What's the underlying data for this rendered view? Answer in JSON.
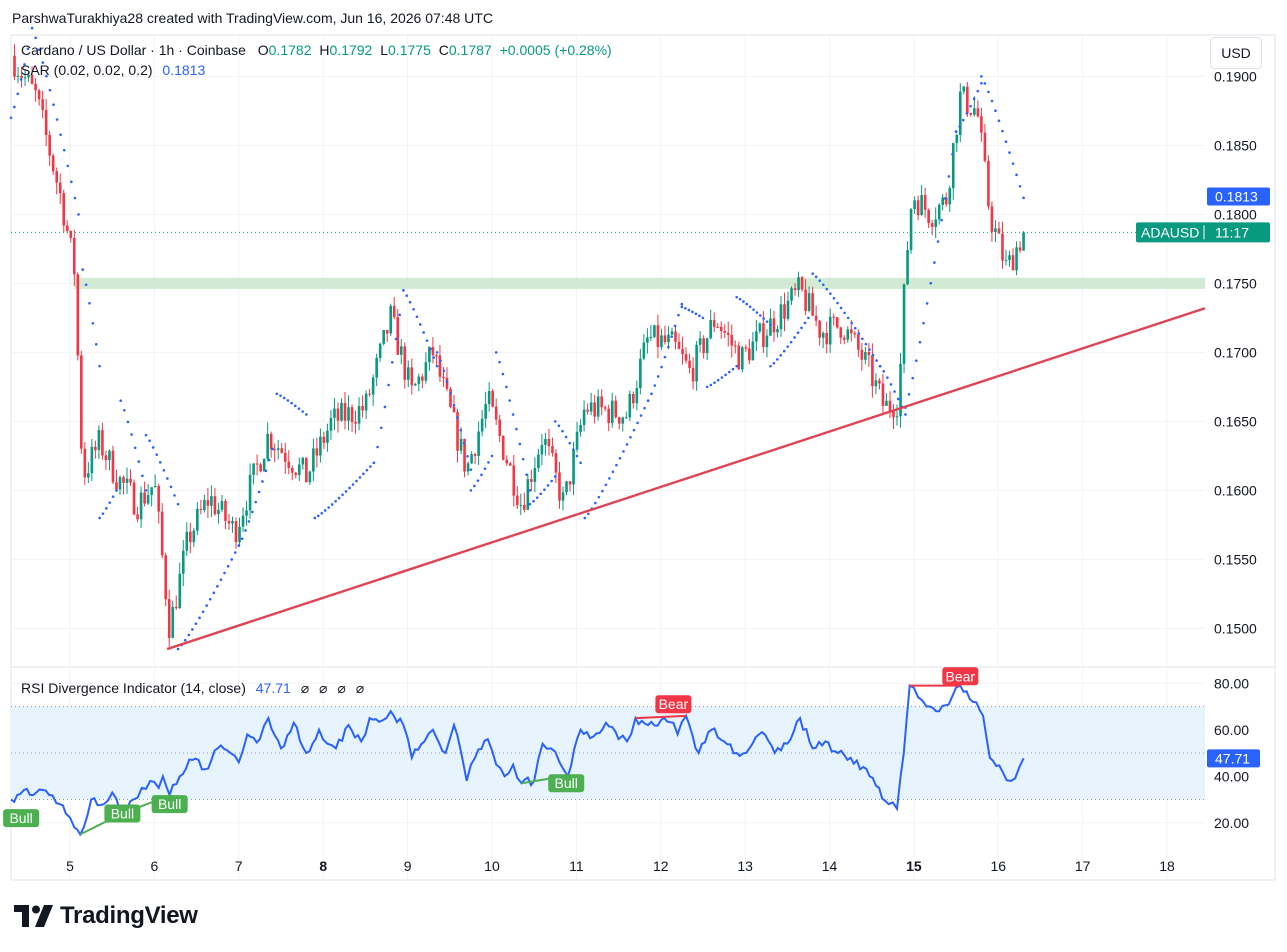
{
  "header": {
    "credit": "ParshwaTurakhiya28 created with TradingView.com, Jun 16, 2026 07:48 UTC",
    "currency_button": "USD"
  },
  "legend": {
    "symbol": "Cardano / US Dollar · 1h · Coinbase",
    "open_label": "O",
    "open": "0.1782",
    "high_label": "H",
    "high": "0.1792",
    "low_label": "L",
    "low": "0.1775",
    "close_label": "C",
    "close": "0.1787",
    "change": "+0.0005 (+0.28%)",
    "sar_label": "SAR (0.02, 0.02, 0.2)",
    "sar_value": "0.1813",
    "rsi_label": "RSI Divergence Indicator (14, close)",
    "rsi_value": "47.71",
    "rsi_flags": [
      "⌀",
      "⌀",
      "⌀",
      "⌀"
    ]
  },
  "badges": {
    "sar_price": "0.1813",
    "ticker": "ADAUSD",
    "countdown": "11:17",
    "rsi_value": "47.71"
  },
  "colors": {
    "up": "#089981",
    "down": "#f23645",
    "sar": "#2962ff",
    "rsi_line": "#2962ff",
    "trendline": "#e04352",
    "zone": "#c8e6c9",
    "bull_label": "#4caf50",
    "bear_label": "#f23645",
    "rsi_band": "#e8f4fd"
  },
  "brand": {
    "logo_text": "TradingView",
    "logo_icon": "tradingview-logo-icon"
  },
  "chart_data": [
    {
      "type": "candlestick",
      "title": "Cardano / US Dollar · 1h · Coinbase",
      "x_ticks": [
        {
          "label": "5",
          "day": 5,
          "bold": false
        },
        {
          "label": "6",
          "day": 6,
          "bold": false
        },
        {
          "label": "7",
          "day": 7,
          "bold": false
        },
        {
          "label": "8",
          "day": 8,
          "bold": true
        },
        {
          "label": "9",
          "day": 9,
          "bold": false
        },
        {
          "label": "10",
          "day": 10,
          "bold": false
        },
        {
          "label": "11",
          "day": 11,
          "bold": false
        },
        {
          "label": "12",
          "day": 12,
          "bold": false
        },
        {
          "label": "13",
          "day": 13,
          "bold": false
        },
        {
          "label": "14",
          "day": 14,
          "bold": false
        },
        {
          "label": "15",
          "day": 15,
          "bold": true
        },
        {
          "label": "16",
          "day": 16,
          "bold": false
        },
        {
          "label": "17",
          "day": 17,
          "bold": false
        },
        {
          "label": "18",
          "day": 18,
          "bold": false
        }
      ],
      "x_range": [
        4.3,
        18.45
      ],
      "y_ticks": [
        "0.1500",
        "0.1550",
        "0.1600",
        "0.1650",
        "0.1700",
        "0.1750",
        "0.1800",
        "0.1850",
        "0.1900"
      ],
      "y_range": [
        0.1472,
        0.193
      ],
      "last_price": 0.1787,
      "sar_last": 0.1813,
      "support_zone": [
        0.1746,
        0.1754
      ],
      "trendline": [
        {
          "day": 6.15,
          "price": 0.1485
        },
        {
          "day": 18.45,
          "price": 0.1732
        }
      ],
      "anchors": [
        {
          "day": 4.3,
          "price": 0.1915
        },
        {
          "day": 4.6,
          "price": 0.1885
        },
        {
          "day": 4.9,
          "price": 0.181
        },
        {
          "day": 5.05,
          "price": 0.176
        },
        {
          "day": 5.15,
          "price": 0.161
        },
        {
          "day": 5.35,
          "price": 0.1635
        },
        {
          "day": 5.55,
          "price": 0.161
        },
        {
          "day": 5.8,
          "price": 0.159
        },
        {
          "day": 6.0,
          "price": 0.1605
        },
        {
          "day": 6.18,
          "price": 0.15
        },
        {
          "day": 6.4,
          "price": 0.1565
        },
        {
          "day": 6.65,
          "price": 0.1595
        },
        {
          "day": 6.95,
          "price": 0.157
        },
        {
          "day": 7.35,
          "price": 0.164
        },
        {
          "day": 7.8,
          "price": 0.161
        },
        {
          "day": 8.1,
          "price": 0.165
        },
        {
          "day": 8.5,
          "price": 0.166
        },
        {
          "day": 8.8,
          "price": 0.1725
        },
        {
          "day": 9.05,
          "price": 0.167
        },
        {
          "day": 9.3,
          "price": 0.17
        },
        {
          "day": 9.7,
          "price": 0.1615
        },
        {
          "day": 9.95,
          "price": 0.1665
        },
        {
          "day": 10.35,
          "price": 0.159
        },
        {
          "day": 10.6,
          "price": 0.164
        },
        {
          "day": 10.85,
          "price": 0.159
        },
        {
          "day": 11.1,
          "price": 0.166
        },
        {
          "day": 11.6,
          "price": 0.1655
        },
        {
          "day": 11.85,
          "price": 0.171
        },
        {
          "day": 12.15,
          "price": 0.1705
        },
        {
          "day": 12.35,
          "price": 0.1685
        },
        {
          "day": 12.65,
          "price": 0.1725
        },
        {
          "day": 12.95,
          "price": 0.1695
        },
        {
          "day": 13.3,
          "price": 0.172
        },
        {
          "day": 13.65,
          "price": 0.1745
        },
        {
          "day": 13.9,
          "price": 0.1715
        },
        {
          "day": 14.15,
          "price": 0.172
        },
        {
          "day": 14.45,
          "price": 0.169
        },
        {
          "day": 14.65,
          "price": 0.166
        },
        {
          "day": 14.82,
          "price": 0.1665
        },
        {
          "day": 14.9,
          "price": 0.176
        },
        {
          "day": 14.98,
          "price": 0.1815
        },
        {
          "day": 15.2,
          "price": 0.18
        },
        {
          "day": 15.38,
          "price": 0.181
        },
        {
          "day": 15.55,
          "price": 0.1885
        },
        {
          "day": 15.75,
          "price": 0.1875
        },
        {
          "day": 15.9,
          "price": 0.18
        },
        {
          "day": 16.1,
          "price": 0.176
        },
        {
          "day": 16.3,
          "price": 0.1787
        }
      ],
      "sar_segments": [
        {
          "from": 4.3,
          "to": 4.5,
          "start": 0.187,
          "end": 0.192
        },
        {
          "from": 4.55,
          "to": 5.1,
          "start": 0.1935,
          "end": 0.18
        },
        {
          "from": 5.15,
          "to": 5.35,
          "start": 0.176,
          "end": 0.169
        },
        {
          "from": 5.35,
          "to": 5.55,
          "start": 0.158,
          "end": 0.16
        },
        {
          "from": 5.6,
          "to": 5.9,
          "start": 0.1665,
          "end": 0.16
        },
        {
          "from": 5.9,
          "to": 6.28,
          "start": 0.164,
          "end": 0.159
        },
        {
          "from": 6.28,
          "to": 7.0,
          "start": 0.1485,
          "end": 0.156
        },
        {
          "from": 7.0,
          "to": 7.4,
          "start": 0.156,
          "end": 0.163
        },
        {
          "from": 7.45,
          "to": 7.8,
          "start": 0.167,
          "end": 0.1655
        },
        {
          "from": 7.9,
          "to": 8.6,
          "start": 0.158,
          "end": 0.162
        },
        {
          "from": 8.6,
          "to": 8.95,
          "start": 0.162,
          "end": 0.1745
        },
        {
          "from": 8.95,
          "to": 9.35,
          "start": 0.1745,
          "end": 0.169
        },
        {
          "from": 9.35,
          "to": 9.75,
          "start": 0.17,
          "end": 0.1615
        },
        {
          "from": 9.75,
          "to": 10.0,
          "start": 0.16,
          "end": 0.1625
        },
        {
          "from": 10.05,
          "to": 10.45,
          "start": 0.17,
          "end": 0.16
        },
        {
          "from": 10.45,
          "to": 10.75,
          "start": 0.159,
          "end": 0.161
        },
        {
          "from": 10.75,
          "to": 11.05,
          "start": 0.165,
          "end": 0.162
        },
        {
          "from": 11.1,
          "to": 11.85,
          "start": 0.158,
          "end": 0.1665
        },
        {
          "from": 11.85,
          "to": 12.25,
          "start": 0.1665,
          "end": 0.1735
        },
        {
          "from": 12.25,
          "to": 12.5,
          "start": 0.1733,
          "end": 0.1725
        },
        {
          "from": 12.55,
          "to": 12.9,
          "start": 0.1675,
          "end": 0.169
        },
        {
          "from": 12.9,
          "to": 13.3,
          "start": 0.174,
          "end": 0.172
        },
        {
          "from": 13.3,
          "to": 13.75,
          "start": 0.169,
          "end": 0.1725
        },
        {
          "from": 13.8,
          "to": 14.6,
          "start": 0.1757,
          "end": 0.169
        },
        {
          "from": 14.6,
          "to": 14.9,
          "start": 0.169,
          "end": 0.1655
        },
        {
          "from": 14.9,
          "to": 15.5,
          "start": 0.166,
          "end": 0.186
        },
        {
          "from": 15.5,
          "to": 15.8,
          "start": 0.186,
          "end": 0.1895
        },
        {
          "from": 15.8,
          "to": 16.3,
          "start": 0.19,
          "end": 0.1812
        }
      ]
    },
    {
      "type": "line",
      "title": "RSI Divergence Indicator (14, close)",
      "y_ticks": [
        "20.00",
        "40.00",
        "60.00",
        "80.00"
      ],
      "y_range": [
        10,
        87
      ],
      "levels": [
        30,
        50,
        70
      ],
      "band": [
        30,
        70
      ],
      "last_value": 47.71,
      "rsi": [
        {
          "day": 4.3,
          "value": 30
        },
        {
          "day": 4.45,
          "value": 34
        },
        {
          "day": 4.6,
          "value": 33
        },
        {
          "day": 4.75,
          "value": 32
        },
        {
          "day": 4.88,
          "value": 28
        },
        {
          "day": 4.95,
          "value": 24
        },
        {
          "day": 5.05,
          "value": 18
        },
        {
          "day": 5.12,
          "value": 15
        },
        {
          "day": 5.25,
          "value": 30
        },
        {
          "day": 5.4,
          "value": 28
        },
        {
          "day": 5.5,
          "value": 33
        },
        {
          "day": 5.6,
          "value": 24
        },
        {
          "day": 5.75,
          "value": 30
        },
        {
          "day": 5.85,
          "value": 35
        },
        {
          "day": 5.95,
          "value": 38
        },
        {
          "day": 6.05,
          "value": 35
        },
        {
          "day": 6.1,
          "value": 40
        },
        {
          "day": 6.18,
          "value": 32
        },
        {
          "day": 6.3,
          "value": 40
        },
        {
          "day": 6.45,
          "value": 47
        },
        {
          "day": 6.6,
          "value": 43
        },
        {
          "day": 6.75,
          "value": 52
        },
        {
          "day": 6.9,
          "value": 50
        },
        {
          "day": 7.0,
          "value": 46
        },
        {
          "day": 7.1,
          "value": 58
        },
        {
          "day": 7.25,
          "value": 56
        },
        {
          "day": 7.35,
          "value": 65
        },
        {
          "day": 7.5,
          "value": 52
        },
        {
          "day": 7.65,
          "value": 63
        },
        {
          "day": 7.8,
          "value": 50
        },
        {
          "day": 7.95,
          "value": 60
        },
        {
          "day": 8.05,
          "value": 54
        },
        {
          "day": 8.15,
          "value": 52
        },
        {
          "day": 8.3,
          "value": 62
        },
        {
          "day": 8.45,
          "value": 55
        },
        {
          "day": 8.55,
          "value": 65
        },
        {
          "day": 8.7,
          "value": 64
        },
        {
          "day": 8.8,
          "value": 68
        },
        {
          "day": 8.95,
          "value": 62
        },
        {
          "day": 9.05,
          "value": 48
        },
        {
          "day": 9.2,
          "value": 55
        },
        {
          "day": 9.3,
          "value": 60
        },
        {
          "day": 9.45,
          "value": 50
        },
        {
          "day": 9.55,
          "value": 62
        },
        {
          "day": 9.7,
          "value": 38
        },
        {
          "day": 9.8,
          "value": 48
        },
        {
          "day": 9.95,
          "value": 56
        },
        {
          "day": 10.05,
          "value": 45
        },
        {
          "day": 10.15,
          "value": 40
        },
        {
          "day": 10.25,
          "value": 45
        },
        {
          "day": 10.35,
          "value": 37
        },
        {
          "day": 10.5,
          "value": 38
        },
        {
          "day": 10.6,
          "value": 54
        },
        {
          "day": 10.7,
          "value": 52
        },
        {
          "day": 10.8,
          "value": 46
        },
        {
          "day": 10.9,
          "value": 40
        },
        {
          "day": 11.05,
          "value": 60
        },
        {
          "day": 11.2,
          "value": 57
        },
        {
          "day": 11.35,
          "value": 63
        },
        {
          "day": 11.5,
          "value": 56
        },
        {
          "day": 11.6,
          "value": 55
        },
        {
          "day": 11.7,
          "value": 65
        },
        {
          "day": 11.85,
          "value": 62
        },
        {
          "day": 12.0,
          "value": 64
        },
        {
          "day": 12.15,
          "value": 63
        },
        {
          "day": 12.2,
          "value": 58
        },
        {
          "day": 12.3,
          "value": 66
        },
        {
          "day": 12.45,
          "value": 50
        },
        {
          "day": 12.6,
          "value": 60
        },
        {
          "day": 12.75,
          "value": 55
        },
        {
          "day": 12.9,
          "value": 50
        },
        {
          "day": 13.05,
          "value": 52
        },
        {
          "day": 13.2,
          "value": 59
        },
        {
          "day": 13.35,
          "value": 50
        },
        {
          "day": 13.5,
          "value": 54
        },
        {
          "day": 13.65,
          "value": 65
        },
        {
          "day": 13.8,
          "value": 52
        },
        {
          "day": 13.95,
          "value": 55
        },
        {
          "day": 14.1,
          "value": 50
        },
        {
          "day": 14.25,
          "value": 48
        },
        {
          "day": 14.4,
          "value": 44
        },
        {
          "day": 14.55,
          "value": 36
        },
        {
          "day": 14.7,
          "value": 28
        },
        {
          "day": 14.8,
          "value": 26
        },
        {
          "day": 14.88,
          "value": 50
        },
        {
          "day": 14.95,
          "value": 79
        },
        {
          "day": 15.05,
          "value": 74
        },
        {
          "day": 15.15,
          "value": 70
        },
        {
          "day": 15.3,
          "value": 68
        },
        {
          "day": 15.45,
          "value": 74
        },
        {
          "day": 15.55,
          "value": 79
        },
        {
          "day": 15.7,
          "value": 72
        },
        {
          "day": 15.82,
          "value": 66
        },
        {
          "day": 15.9,
          "value": 48
        },
        {
          "day": 16.05,
          "value": 42
        },
        {
          "day": 16.15,
          "value": 38
        },
        {
          "day": 16.25,
          "value": 44
        },
        {
          "day": 16.3,
          "value": 47.71
        }
      ],
      "divergences": [
        {
          "kind": "bull",
          "from": {
            "day": 5.12,
            "value": 15
          },
          "to": {
            "day": 5.62,
            "value": 24
          }
        },
        {
          "kind": "bull",
          "from": {
            "day": 5.62,
            "value": 24
          },
          "to": {
            "day": 6.2,
            "value": 32
          }
        },
        {
          "kind": "bull",
          "from": {
            "day": 10.35,
            "value": 37
          },
          "to": {
            "day": 10.85,
            "value": 40
          }
        },
        {
          "kind": "bear",
          "from": {
            "day": 11.7,
            "value": 65
          },
          "to": {
            "day": 12.3,
            "value": 66
          }
        },
        {
          "kind": "bear",
          "from": {
            "day": 14.95,
            "value": 79
          },
          "to": {
            "day": 15.55,
            "value": 79
          }
        }
      ],
      "signal_labels": [
        {
          "text": "Bull",
          "kind": "bull",
          "day": 4.42,
          "value": 22
        },
        {
          "text": "Bull",
          "kind": "bull",
          "day": 5.62,
          "value": 24
        },
        {
          "text": "Bull",
          "kind": "bull",
          "day": 6.18,
          "value": 28
        },
        {
          "text": "Bull",
          "kind": "bull",
          "day": 10.88,
          "value": 37
        },
        {
          "text": "Bear",
          "kind": "bear",
          "day": 12.15,
          "value": 71
        },
        {
          "text": "Bear",
          "kind": "bear",
          "day": 15.55,
          "value": 83
        }
      ]
    }
  ]
}
